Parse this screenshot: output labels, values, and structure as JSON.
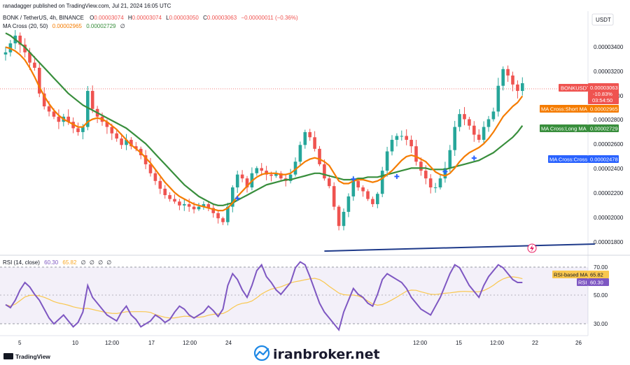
{
  "header": {
    "publisher": "ranadagger published on TradingView.com, Jul 21, 2024 16:05 UTC",
    "symbol": "BONK / TetherUS, 4h, BINANCE",
    "ohlc": {
      "o_label": "O",
      "o": "0.00003074",
      "h_label": "H",
      "h": "0.00003074",
      "l_label": "L",
      "l": "0.00003050",
      "c_label": "C",
      "c": "0.00003063",
      "chg": "−0.00000011 (−0.36%)"
    },
    "ma_legend": "MA Cross (20, 50)",
    "ma_short_val": "0.00002965",
    "ma_long_val": "0.00002729",
    "ma_glyph": "∅"
  },
  "price_axis": {
    "currency": "USDT",
    "ticks": [
      "0.00003400",
      "0.00003200",
      "0.00003000",
      "0.00002800",
      "0.00002600",
      "0.00002400",
      "0.00002200",
      "0.00002000",
      "0.00001800"
    ]
  },
  "tags": {
    "bonk_name": "BONKUSDT",
    "bonk_price": "0.00003063",
    "bonk_change": "-10.83%",
    "bonk_timer": "03:54:50",
    "short_ma_label": "MA Cross:Short MA",
    "short_ma_value": "0.00002965",
    "long_ma_label": "MA Cross:Long MA",
    "long_ma_value": "0.00002729",
    "cross_label": "MA Cross:Cross",
    "cross_value": "0.00002478"
  },
  "rsi": {
    "legend": "RSI (14, close)",
    "v1": "60.30",
    "v2": "65.82",
    "glyph": "∅",
    "ticks": [
      "70.00",
      "50.00",
      "30.00"
    ],
    "based_ma_label": "RSI-based MA",
    "based_ma_value": "65.82",
    "rsi_label": "RSI",
    "rsi_value": "60.30"
  },
  "time_axis": {
    "labels": [
      "5",
      "10",
      "12:00",
      "17",
      "12:00",
      "24",
      "12:00",
      "15",
      "12:00",
      "22",
      "26"
    ]
  },
  "footer": {
    "logo_text": "TradingView",
    "watermark": "iranbroker.net"
  },
  "colors": {
    "bull": "#26a69a",
    "bear": "#ef5350",
    "short_ma": "#f57c00",
    "long_ma": "#388e3c",
    "cross": "#2962ff",
    "trend": "#1e3a8a",
    "rsi": "#7e57c2",
    "rsi_ma": "#f9c74f"
  },
  "chart_data": {
    "type": "candlestick",
    "symbol": "BONK / TetherUS",
    "interval": "4h",
    "ylim": [
      1.75e-05,
      3.62e-05
    ],
    "price_series": [
      3.3e-05,
      3.37e-05,
      3.43e-05,
      3.36e-05,
      3.3e-05,
      3.22e-05,
      3.18e-05,
      2.98e-05,
      2.88e-05,
      2.84e-05,
      2.8e-05,
      2.76e-05,
      2.8e-05,
      2.76e-05,
      2.71e-05,
      2.68e-05,
      2.72e-05,
      3e-05,
      2.86e-05,
      2.8e-05,
      2.76e-05,
      2.72e-05,
      2.67e-05,
      2.63e-05,
      2.58e-05,
      2.62e-05,
      2.57e-05,
      2.55e-05,
      2.5e-05,
      2.43e-05,
      2.36e-05,
      2.3e-05,
      2.24e-05,
      2.19e-05,
      2.16e-05,
      2.14e-05,
      2.11e-05,
      2.12e-05,
      2.1e-05,
      2.08e-05,
      2.1e-05,
      2.12e-05,
      2.09e-05,
      2.05e-05,
      2.01e-05,
      1.98e-05,
      2.1e-05,
      2.25e-05,
      2.35e-05,
      2.32e-05,
      2.25e-05,
      2.36e-05,
      2.4e-05,
      2.38e-05,
      2.35e-05,
      2.34e-05,
      2.36e-05,
      2.32e-05,
      2.3e-05,
      2.35e-05,
      2.45e-05,
      2.58e-05,
      2.68e-05,
      2.64e-05,
      2.55e-05,
      2.43e-05,
      2.32e-05,
      2.26e-05,
      2.1e-05,
      1.95e-05,
      2.06e-05,
      2.18e-05,
      2.3e-05,
      2.25e-05,
      2.22e-05,
      2.16e-05,
      2.12e-05,
      2.2e-05,
      2.38e-05,
      2.53e-05,
      2.62e-05,
      2.65e-05,
      2.65e-05,
      2.62e-05,
      2.57e-05,
      2.45e-05,
      2.38e-05,
      2.32e-05,
      2.25e-05,
      2.25e-05,
      2.32e-05,
      2.4e-05,
      2.54e-05,
      2.72e-05,
      2.82e-05,
      2.78e-05,
      2.73e-05,
      2.66e-05,
      2.62e-05,
      2.72e-05,
      2.78e-05,
      2.84e-05,
      3.04e-05,
      3.17e-05,
      3.12e-05,
      3.05e-05,
      3e-05,
      3.06e-05
    ],
    "short_ma": [
      3.34e-05,
      3.33e-05,
      3.31e-05,
      3.28e-05,
      3.24e-05,
      3.18e-05,
      3.11e-05,
      3.03e-05,
      2.96e-05,
      2.9e-05,
      2.85e-05,
      2.81e-05,
      2.78e-05,
      2.76e-05,
      2.74e-05,
      2.72e-05,
      2.72e-05,
      2.76e-05,
      2.78e-05,
      2.79e-05,
      2.78e-05,
      2.76e-05,
      2.73e-05,
      2.7e-05,
      2.66e-05,
      2.62e-05,
      2.58e-05,
      2.55e-05,
      2.52e-05,
      2.48e-05,
      2.44e-05,
      2.39e-05,
      2.34e-05,
      2.29e-05,
      2.25e-05,
      2.21e-05,
      2.18e-05,
      2.16e-05,
      2.14e-05,
      2.12e-05,
      2.11e-05,
      2.1e-05,
      2.09e-05,
      2.08e-05,
      2.07e-05,
      2.07e-05,
      2.09e-05,
      2.13e-05,
      2.18e-05,
      2.22e-05,
      2.26e-05,
      2.3e-05,
      2.33e-05,
      2.35e-05,
      2.36e-05,
      2.36e-05,
      2.36e-05,
      2.35e-05,
      2.35e-05,
      2.36e-05,
      2.39e-05,
      2.42e-05,
      2.45e-05,
      2.47e-05,
      2.48e-05,
      2.47e-05,
      2.45e-05,
      2.42e-05,
      2.36e-05,
      2.3e-05,
      2.28e-05,
      2.28e-05,
      2.3e-05,
      2.31e-05,
      2.31e-05,
      2.3e-05,
      2.29e-05,
      2.3e-05,
      2.32e-05,
      2.35e-05,
      2.38e-05,
      2.42e-05,
      2.46e-05,
      2.49e-05,
      2.5e-05,
      2.49e-05,
      2.47e-05,
      2.45e-05,
      2.41e-05,
      2.37e-05,
      2.35e-05,
      2.34e-05,
      2.36e-05,
      2.4e-05,
      2.45e-05,
      2.49e-05,
      2.52e-05,
      2.54e-05,
      2.56e-05,
      2.59e-05,
      2.63e-05,
      2.68e-05,
      2.74e-05,
      2.8e-05,
      2.84e-05,
      2.88e-05,
      2.91e-05,
      2.96e-05
    ],
    "long_ma": [
      3.45e-05,
      3.43e-05,
      3.4e-05,
      3.37e-05,
      3.34e-05,
      3.3e-05,
      3.26e-05,
      3.22e-05,
      3.18e-05,
      3.14e-05,
      3.1e-05,
      3.06e-05,
      3.02e-05,
      2.98e-05,
      2.95e-05,
      2.92e-05,
      2.89e-05,
      2.87e-05,
      2.85e-05,
      2.83e-05,
      2.81e-05,
      2.79e-05,
      2.77e-05,
      2.75e-05,
      2.73e-05,
      2.71e-05,
      2.68e-05,
      2.65e-05,
      2.62e-05,
      2.59e-05,
      2.55e-05,
      2.51e-05,
      2.47e-05,
      2.43e-05,
      2.39e-05,
      2.35e-05,
      2.31e-05,
      2.27e-05,
      2.24e-05,
      2.21e-05,
      2.18e-05,
      2.16e-05,
      2.14e-05,
      2.12e-05,
      2.11e-05,
      2.11e-05,
      2.12e-05,
      2.13e-05,
      2.15e-05,
      2.17e-05,
      2.19e-05,
      2.21e-05,
      2.23e-05,
      2.25e-05,
      2.27e-05,
      2.28e-05,
      2.29e-05,
      2.3e-05,
      2.31e-05,
      2.31e-05,
      2.32e-05,
      2.33e-05,
      2.34e-05,
      2.35e-05,
      2.36e-05,
      2.36e-05,
      2.35e-05,
      2.34e-05,
      2.33e-05,
      2.32e-05,
      2.31e-05,
      2.31e-05,
      2.31e-05,
      2.32e-05,
      2.32e-05,
      2.33e-05,
      2.33e-05,
      2.33e-05,
      2.34e-05,
      2.35e-05,
      2.36e-05,
      2.37e-05,
      2.38e-05,
      2.39e-05,
      2.4e-05,
      2.4e-05,
      2.4e-05,
      2.4e-05,
      2.39e-05,
      2.39e-05,
      2.39e-05,
      2.39e-05,
      2.4e-05,
      2.41e-05,
      2.42e-05,
      2.43e-05,
      2.44e-05,
      2.45e-05,
      2.46e-05,
      2.48e-05,
      2.5e-05,
      2.52e-05,
      2.55e-05,
      2.58e-05,
      2.61e-05,
      2.64e-05,
      2.68e-05,
      2.73e-05
    ],
    "cross_points": [
      {
        "index": 48,
        "price": 2.165e-05
      },
      {
        "index": 72,
        "price": 2.315e-05
      },
      {
        "index": 81,
        "price": 2.335e-05
      },
      {
        "index": 91,
        "price": 2.373e-05
      },
      {
        "index": 97,
        "price": 2.478e-05
      }
    ],
    "trendline": [
      {
        "index": 66,
        "price": 1.755e-05
      },
      {
        "index": 122,
        "price": 1.81e-05
      }
    ],
    "rsi_series": [
      45,
      43,
      48,
      55,
      60,
      57,
      52,
      48,
      42,
      36,
      32,
      35,
      38,
      34,
      30,
      33,
      40,
      58,
      50,
      46,
      42,
      38,
      36,
      34,
      40,
      44,
      38,
      35,
      30,
      32,
      34,
      38,
      36,
      33,
      35,
      40,
      44,
      42,
      38,
      36,
      38,
      40,
      44,
      41,
      37,
      42,
      58,
      66,
      62,
      55,
      50,
      58,
      68,
      72,
      64,
      60,
      55,
      52,
      56,
      60,
      70,
      74,
      72,
      64,
      55,
      46,
      40,
      36,
      32,
      28,
      40,
      48,
      56,
      52,
      50,
      46,
      44,
      52,
      62,
      66,
      64,
      62,
      60,
      56,
      50,
      46,
      42,
      40,
      38,
      44,
      50,
      58,
      66,
      72,
      70,
      64,
      58,
      54,
      50,
      58,
      64,
      68,
      72,
      70,
      66,
      62,
      60,
      60
    ],
    "rsi_ylim": [
      25,
      78
    ]
  }
}
